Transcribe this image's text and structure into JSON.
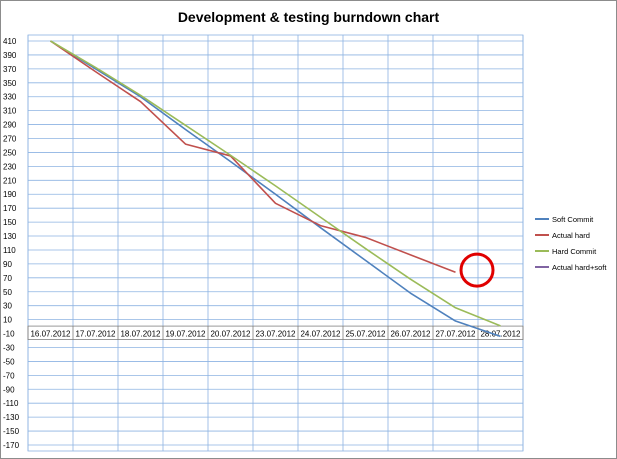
{
  "chart_data": {
    "type": "line",
    "title": "Development & testing burndown chart",
    "categories": [
      "16.07.2012",
      "17.07.2012",
      "18.07.2012",
      "19.07.2012",
      "20.07.2012",
      "23.07.2012",
      "24.07.2012",
      "25.07.2012",
      "26.07.2012",
      "27.07.2012",
      "28.07.2012"
    ],
    "ylim": [
      -170,
      410
    ],
    "ystep": 20,
    "grid": true,
    "legend_position": "right",
    "series": [
      {
        "name": "Soft Commit",
        "color": "#4f81bd",
        "values": [
          410,
          370,
          330,
          283,
          237,
          190,
          142,
          95,
          48,
          8,
          -14
        ]
      },
      {
        "name": "Actual hard",
        "color": "#c0504d",
        "values": [
          410,
          366,
          323,
          262,
          245,
          177,
          145,
          128,
          103,
          78,
          null
        ]
      },
      {
        "name": "Hard Commit",
        "color": "#9bbb59",
        "values": [
          410,
          372,
          332,
          289,
          246,
          202,
          157,
          112,
          68,
          27,
          1
        ]
      },
      {
        "name": "Actual hard+soft",
        "color": "#8064a2",
        "values": [
          null,
          null,
          null,
          null,
          null,
          null,
          null,
          null,
          null,
          null,
          null
        ]
      }
    ],
    "annotation": {
      "type": "circle",
      "color": "#e00000",
      "x_index": 9.5,
      "y": 81
    }
  }
}
